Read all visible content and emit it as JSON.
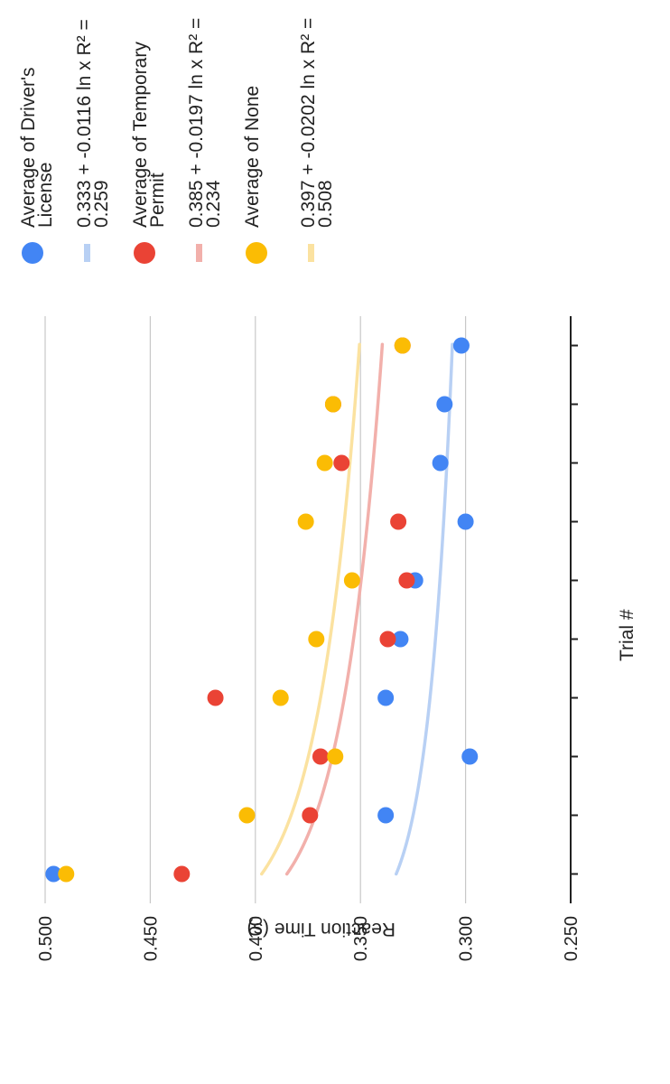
{
  "chart_data": {
    "type": "scatter",
    "title": "",
    "xlabel": "Trial #",
    "ylabel": "Reaction Time (s)",
    "x": [
      1,
      2,
      3,
      4,
      5,
      6,
      7,
      8,
      9,
      10
    ],
    "ylim": [
      0.25,
      0.5
    ],
    "yticks": [
      "0.500",
      "0.450",
      "0.400",
      "0.350",
      "0.300",
      "0.250"
    ],
    "grid": true,
    "legend_position": "right",
    "series": [
      {
        "name": "Average of Driver's License",
        "color": "#4285f4",
        "values": [
          0.496,
          0.338,
          0.298,
          0.338,
          0.331,
          0.324,
          0.3,
          0.312,
          0.31,
          0.302
        ],
        "trendline": {
          "label": "0.333 + -0.0116 ln x R² = 0.259",
          "intercept": 0.333,
          "slope": -0.0116,
          "color": "#b8d0f4"
        }
      },
      {
        "name": "Average of Temporary Permit",
        "color": "#ea4335",
        "values": [
          0.435,
          0.374,
          0.369,
          0.419,
          0.337,
          0.328,
          0.332,
          0.359,
          0.363,
          0.33
        ],
        "trendline": {
          "label": "0.385 + -0.0197 ln x R² = 0.234",
          "intercept": 0.385,
          "slope": -0.0197,
          "color": "#f2b0ab"
        }
      },
      {
        "name": "Average of None",
        "color": "#fbbc04",
        "values": [
          0.49,
          0.404,
          0.362,
          0.388,
          0.371,
          0.354,
          0.376,
          0.367,
          0.363,
          0.33
        ],
        "trendline": {
          "label": "0.397 + -0.0202 ln x R² = 0.508",
          "intercept": 0.397,
          "slope": -0.0202,
          "color": "#fbe2a0"
        }
      }
    ]
  },
  "legend": [
    {
      "text": "Average of Driver's License",
      "marker": "dot",
      "color": "#4285f4"
    },
    {
      "text": "0.333 + -0.0116 ln x R² = 0.259",
      "marker": "line",
      "color": "#b8d0f4"
    },
    {
      "text": "Average of Temporary Permit",
      "marker": "dot",
      "color": "#ea4335"
    },
    {
      "text": "0.385 + -0.0197 ln x R² = 0.234",
      "marker": "line",
      "color": "#f2b0ab"
    },
    {
      "text": "Average of None",
      "marker": "dot",
      "color": "#fbbc04"
    },
    {
      "text": "0.397 + -0.0202 ln x R² = 0.508",
      "marker": "line",
      "color": "#fbe2a0"
    }
  ]
}
